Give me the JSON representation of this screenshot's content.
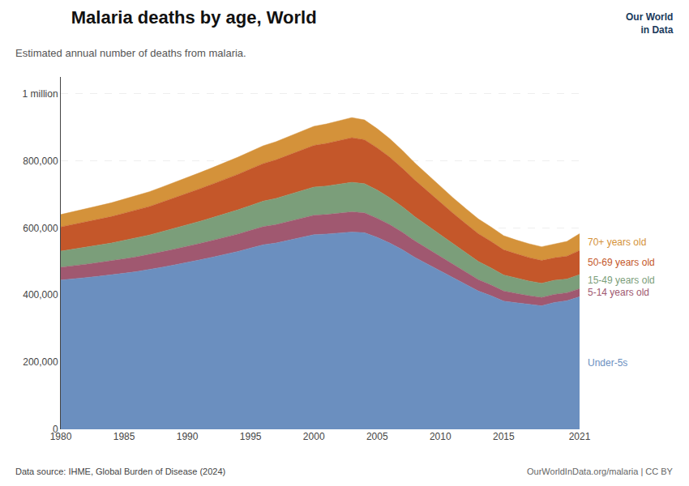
{
  "chart_data": {
    "type": "area",
    "title": "Malaria deaths by age, World",
    "subtitle": "Estimated annual number of deaths from malaria.",
    "annotations": [
      "Data source: IHME, Global Burden of Disease (2024)",
      "OurWorldInData.org/malaria | CC BY",
      "Our World\nin Data"
    ],
    "x": [
      1980,
      1981,
      1982,
      1983,
      1984,
      1985,
      1986,
      1987,
      1988,
      1989,
      1990,
      1991,
      1992,
      1993,
      1994,
      1995,
      1996,
      1997,
      1998,
      1999,
      2000,
      2001,
      2002,
      2003,
      2004,
      2005,
      2006,
      2007,
      2008,
      2009,
      2010,
      2011,
      2012,
      2013,
      2014,
      2015,
      2016,
      2017,
      2018,
      2019,
      2020,
      2021
    ],
    "series": [
      {
        "name": "Under-5s",
        "color": "#6B8FBF",
        "values": [
          445000,
          448000,
          452000,
          456000,
          460000,
          465000,
          470000,
          476000,
          483000,
          490000,
          497000,
          505000,
          513000,
          521000,
          530000,
          540000,
          550000,
          555000,
          563000,
          572000,
          580000,
          582000,
          585000,
          588000,
          586000,
          572000,
          555000,
          535000,
          512000,
          492000,
          472000,
          452000,
          432000,
          412000,
          398000,
          382000,
          377000,
          372000,
          368000,
          378000,
          383000,
          395000
        ]
      },
      {
        "name": "5-14 years old",
        "color": "#A05870",
        "values": [
          38000,
          39000,
          40000,
          41000,
          42000,
          43000,
          44000,
          45000,
          46000,
          47000,
          48000,
          49000,
          50000,
          51000,
          52000,
          53000,
          54000,
          55000,
          56000,
          57000,
          58000,
          58000,
          59000,
          60000,
          59000,
          57000,
          55000,
          52000,
          49000,
          46000,
          43000,
          40000,
          37000,
          34000,
          32000,
          30000,
          28000,
          26000,
          25000,
          24000,
          24000,
          24000
        ]
      },
      {
        "name": "15-49 years old",
        "color": "#7B9E7A",
        "values": [
          48000,
          50000,
          51000,
          52000,
          53000,
          55000,
          57000,
          58000,
          60000,
          62000,
          64000,
          66000,
          68000,
          70000,
          72000,
          74000,
          76000,
          78000,
          80000,
          82000,
          84000,
          85000,
          86000,
          88000,
          87000,
          84000,
          80000,
          76000,
          72000,
          68000,
          64000,
          60000,
          57000,
          54000,
          51000,
          48000,
          46000,
          44000,
          42000,
          42000,
          41000,
          42000
        ]
      },
      {
        "name": "50-69 years old",
        "color": "#C4572A",
        "values": [
          72000,
          74000,
          76000,
          77000,
          79000,
          81000,
          83000,
          85000,
          88000,
          91000,
          94000,
          97000,
          100000,
          103000,
          106000,
          109000,
          112000,
          115000,
          118000,
          121000,
          124000,
          127000,
          130000,
          133000,
          131000,
          126000,
          121000,
          115000,
          109000,
          103000,
          97000,
          92000,
          87000,
          83000,
          79000,
          75000,
          72000,
          70000,
          68000,
          67000,
          68000,
          72000
        ]
      },
      {
        "name": "70+ years old",
        "color": "#D4923A",
        "values": [
          37000,
          38000,
          39000,
          40000,
          41000,
          42000,
          43000,
          44000,
          45000,
          46000,
          47000,
          48000,
          49000,
          50000,
          51000,
          52000,
          53000,
          54000,
          55000,
          56000,
          57000,
          58000,
          59000,
          60000,
          59000,
          57000,
          55000,
          53000,
          51000,
          49000,
          47000,
          46000,
          45000,
          44000,
          43000,
          42000,
          41000,
          41000,
          41000,
          41000,
          44000,
          50000
        ]
      }
    ],
    "stacked": true,
    "xlim": [
      1980,
      2021
    ],
    "xticks": [
      1980,
      1985,
      1990,
      1995,
      2000,
      2005,
      2010,
      2015,
      2021
    ],
    "ylim": [
      0,
      1050000
    ],
    "yticks": [
      0,
      {
        "value": 200000,
        "label": "200,000"
      },
      {
        "value": 400000,
        "label": "400,000"
      },
      {
        "value": 600000,
        "label": "600,000"
      },
      {
        "value": 800000,
        "label": "800,000"
      },
      {
        "value": 1000000,
        "label": "1 million"
      }
    ],
    "grid": true
  }
}
